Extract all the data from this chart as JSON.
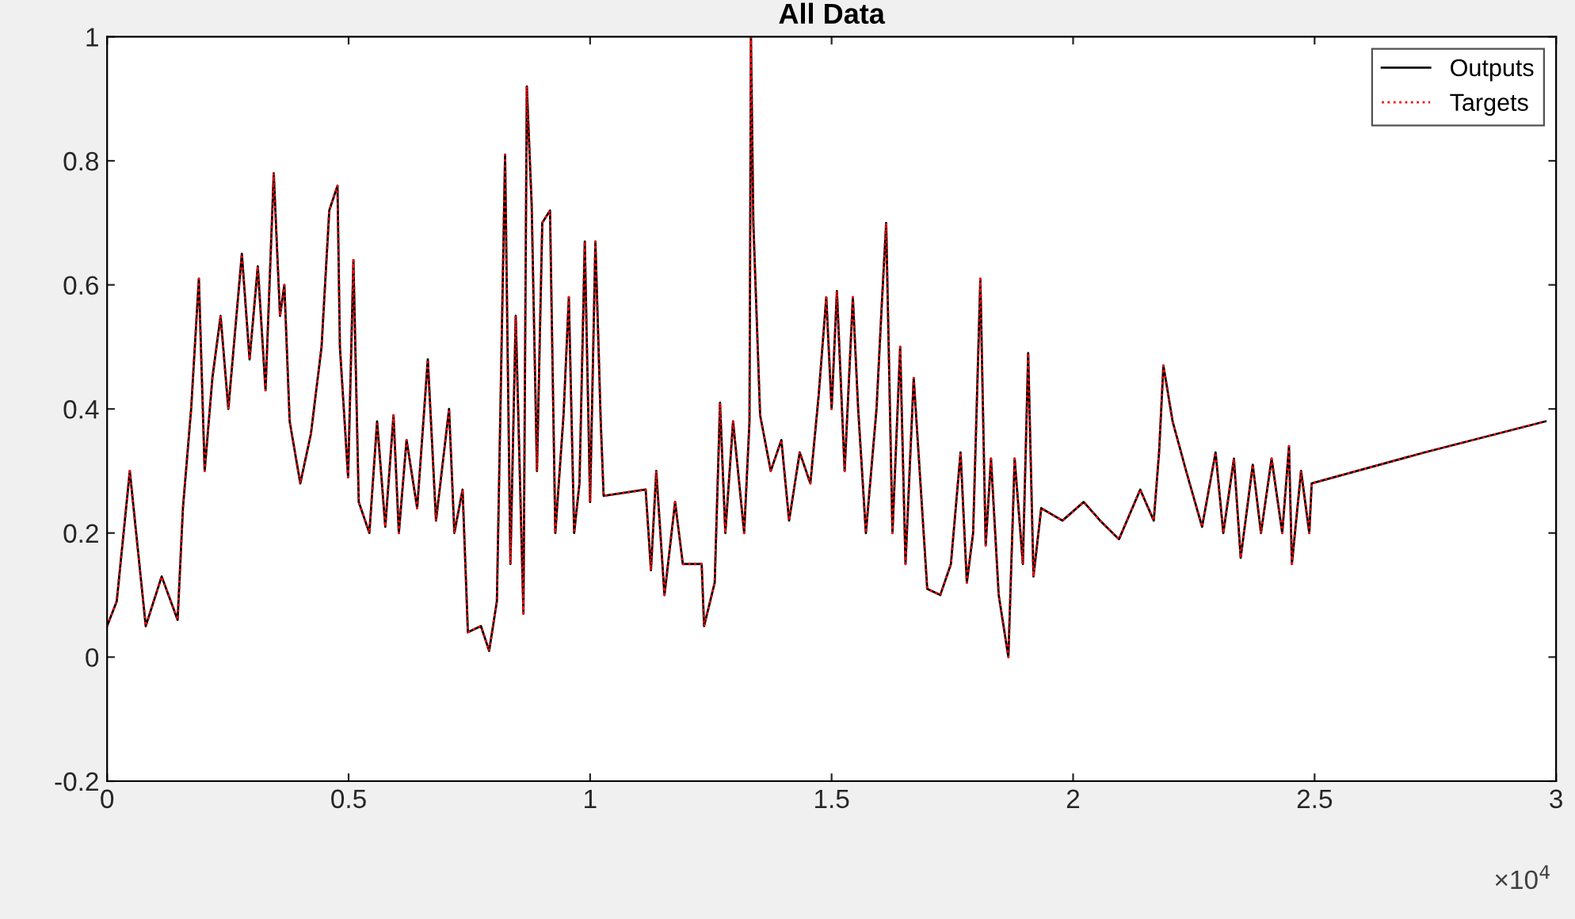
{
  "chart_data": {
    "type": "line",
    "title": "All Data",
    "x": [
      0,
      0.02,
      0.047,
      0.08,
      0.113,
      0.146,
      0.157,
      0.174,
      0.19,
      0.202,
      0.218,
      0.235,
      0.251,
      0.279,
      0.295,
      0.312,
      0.328,
      0.345,
      0.358,
      0.367,
      0.378,
      0.4,
      0.422,
      0.444,
      0.46,
      0.477,
      0.482,
      0.499,
      0.51,
      0.521,
      0.543,
      0.559,
      0.576,
      0.593,
      0.604,
      0.62,
      0.642,
      0.664,
      0.681,
      0.708,
      0.719,
      0.736,
      0.747,
      0.774,
      0.791,
      0.807,
      0.816,
      0.824,
      0.835,
      0.846,
      0.862,
      0.869,
      0.879,
      0.89,
      0.901,
      0.917,
      0.928,
      0.945,
      0.956,
      0.967,
      0.978,
      0.989,
      1.0,
      1.011,
      1.022,
      1.028,
      1.115,
      1.126,
      1.137,
      1.154,
      1.176,
      1.192,
      1.231,
      1.236,
      1.258,
      1.269,
      1.28,
      1.296,
      1.319,
      1.33,
      1.333,
      1.338,
      1.352,
      1.374,
      1.396,
      1.412,
      1.434,
      1.456,
      1.473,
      1.489,
      1.5,
      1.511,
      1.527,
      1.544,
      1.555,
      1.571,
      1.593,
      1.604,
      1.613,
      1.626,
      1.642,
      1.653,
      1.67,
      1.698,
      1.725,
      1.747,
      1.767,
      1.78,
      1.793,
      1.808,
      1.819,
      1.83,
      1.846,
      1.866,
      1.879,
      1.896,
      1.907,
      1.918,
      1.934,
      1.978,
      2.022,
      2.056,
      2.095,
      2.139,
      2.167,
      2.178,
      2.187,
      2.206,
      2.234,
      2.267,
      2.295,
      2.311,
      2.333,
      2.347,
      2.372,
      2.389,
      2.411,
      2.433,
      2.447,
      2.453,
      2.472,
      2.489,
      2.494,
      2.728,
      2.978
    ],
    "series": [
      {
        "name": "Outputs",
        "color": "#000000",
        "line_style": "solid",
        "values": [
          0.05,
          0.09,
          0.3,
          0.05,
          0.13,
          0.06,
          0.24,
          0.4,
          0.61,
          0.3,
          0.45,
          0.55,
          0.4,
          0.65,
          0.48,
          0.63,
          0.43,
          0.78,
          0.55,
          0.6,
          0.38,
          0.28,
          0.36,
          0.5,
          0.72,
          0.76,
          0.5,
          0.29,
          0.64,
          0.25,
          0.2,
          0.38,
          0.21,
          0.39,
          0.2,
          0.35,
          0.24,
          0.48,
          0.22,
          0.4,
          0.2,
          0.27,
          0.04,
          0.05,
          0.01,
          0.09,
          0.47,
          0.81,
          0.15,
          0.55,
          0.07,
          0.92,
          0.73,
          0.3,
          0.7,
          0.72,
          0.2,
          0.39,
          0.58,
          0.2,
          0.28,
          0.67,
          0.25,
          0.67,
          0.38,
          0.26,
          0.27,
          0.14,
          0.3,
          0.1,
          0.25,
          0.15,
          0.15,
          0.05,
          0.12,
          0.41,
          0.2,
          0.38,
          0.2,
          0.38,
          1.0,
          0.7,
          0.39,
          0.3,
          0.35,
          0.22,
          0.33,
          0.28,
          0.42,
          0.58,
          0.4,
          0.59,
          0.3,
          0.58,
          0.4,
          0.2,
          0.4,
          0.57,
          0.7,
          0.2,
          0.5,
          0.15,
          0.45,
          0.11,
          0.1,
          0.15,
          0.33,
          0.12,
          0.2,
          0.61,
          0.18,
          0.32,
          0.1,
          0.0,
          0.32,
          0.15,
          0.49,
          0.13,
          0.24,
          0.22,
          0.25,
          0.22,
          0.19,
          0.27,
          0.22,
          0.33,
          0.47,
          0.38,
          0.3,
          0.21,
          0.33,
          0.2,
          0.32,
          0.16,
          0.31,
          0.2,
          0.32,
          0.2,
          0.34,
          0.15,
          0.3,
          0.2,
          0.28,
          0.33,
          0.38
        ]
      },
      {
        "name": "Targets",
        "color": "#ff0000",
        "line_style": "dotted",
        "values": [
          0.05,
          0.09,
          0.3,
          0.05,
          0.13,
          0.06,
          0.24,
          0.4,
          0.61,
          0.3,
          0.45,
          0.55,
          0.4,
          0.65,
          0.48,
          0.63,
          0.43,
          0.78,
          0.55,
          0.6,
          0.38,
          0.28,
          0.36,
          0.5,
          0.72,
          0.76,
          0.5,
          0.29,
          0.64,
          0.25,
          0.2,
          0.38,
          0.21,
          0.39,
          0.2,
          0.35,
          0.24,
          0.48,
          0.22,
          0.4,
          0.2,
          0.27,
          0.04,
          0.05,
          0.01,
          0.09,
          0.47,
          0.81,
          0.15,
          0.55,
          0.07,
          0.92,
          0.73,
          0.3,
          0.7,
          0.72,
          0.2,
          0.39,
          0.58,
          0.2,
          0.28,
          0.67,
          0.25,
          0.67,
          0.38,
          0.26,
          0.27,
          0.14,
          0.3,
          0.1,
          0.25,
          0.15,
          0.15,
          0.05,
          0.12,
          0.41,
          0.2,
          0.38,
          0.2,
          0.38,
          1.0,
          0.7,
          0.39,
          0.3,
          0.35,
          0.22,
          0.33,
          0.28,
          0.42,
          0.58,
          0.4,
          0.59,
          0.3,
          0.58,
          0.4,
          0.2,
          0.4,
          0.57,
          0.7,
          0.2,
          0.5,
          0.15,
          0.45,
          0.11,
          0.1,
          0.15,
          0.33,
          0.12,
          0.2,
          0.61,
          0.18,
          0.32,
          0.1,
          0.0,
          0.32,
          0.15,
          0.49,
          0.13,
          0.24,
          0.22,
          0.25,
          0.22,
          0.19,
          0.27,
          0.22,
          0.33,
          0.47,
          0.38,
          0.3,
          0.21,
          0.33,
          0.2,
          0.32,
          0.16,
          0.31,
          0.2,
          0.32,
          0.2,
          0.34,
          0.15,
          0.3,
          0.2,
          0.28,
          0.33,
          0.38
        ]
      }
    ],
    "xlim": [
      0,
      3
    ],
    "xticks": [
      0,
      0.5,
      1,
      1.5,
      2,
      2.5,
      3
    ],
    "ylim": [
      -0.2,
      1
    ],
    "yticks": [
      -0.2,
      0,
      0.2,
      0.4,
      0.6,
      0.8,
      1
    ],
    "annotations": [
      "×10$^{4}$"
    ],
    "grid": false,
    "legend": "top right"
  }
}
